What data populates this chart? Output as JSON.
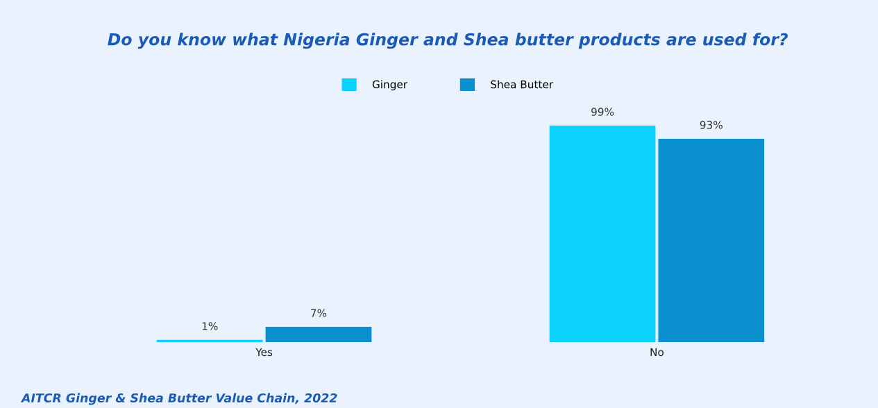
{
  "chart_data": {
    "type": "bar",
    "title": "Do you know what Nigeria Ginger and Shea butter products are used for?",
    "categories": [
      "Yes",
      "No"
    ],
    "series": [
      {
        "name": "Ginger",
        "color": "#0bd3fc",
        "values": [
          1,
          99
        ],
        "value_labels": [
          "1%",
          "99%"
        ]
      },
      {
        "name": "Shea Butter",
        "color": "#0a90cf",
        "values": [
          7,
          93
        ],
        "value_labels": [
          "7%",
          "93%"
        ]
      }
    ],
    "legend": "top",
    "annotations": [
      "AITCR Ginger & Shea Butter Value Chain, 2022"
    ]
  }
}
